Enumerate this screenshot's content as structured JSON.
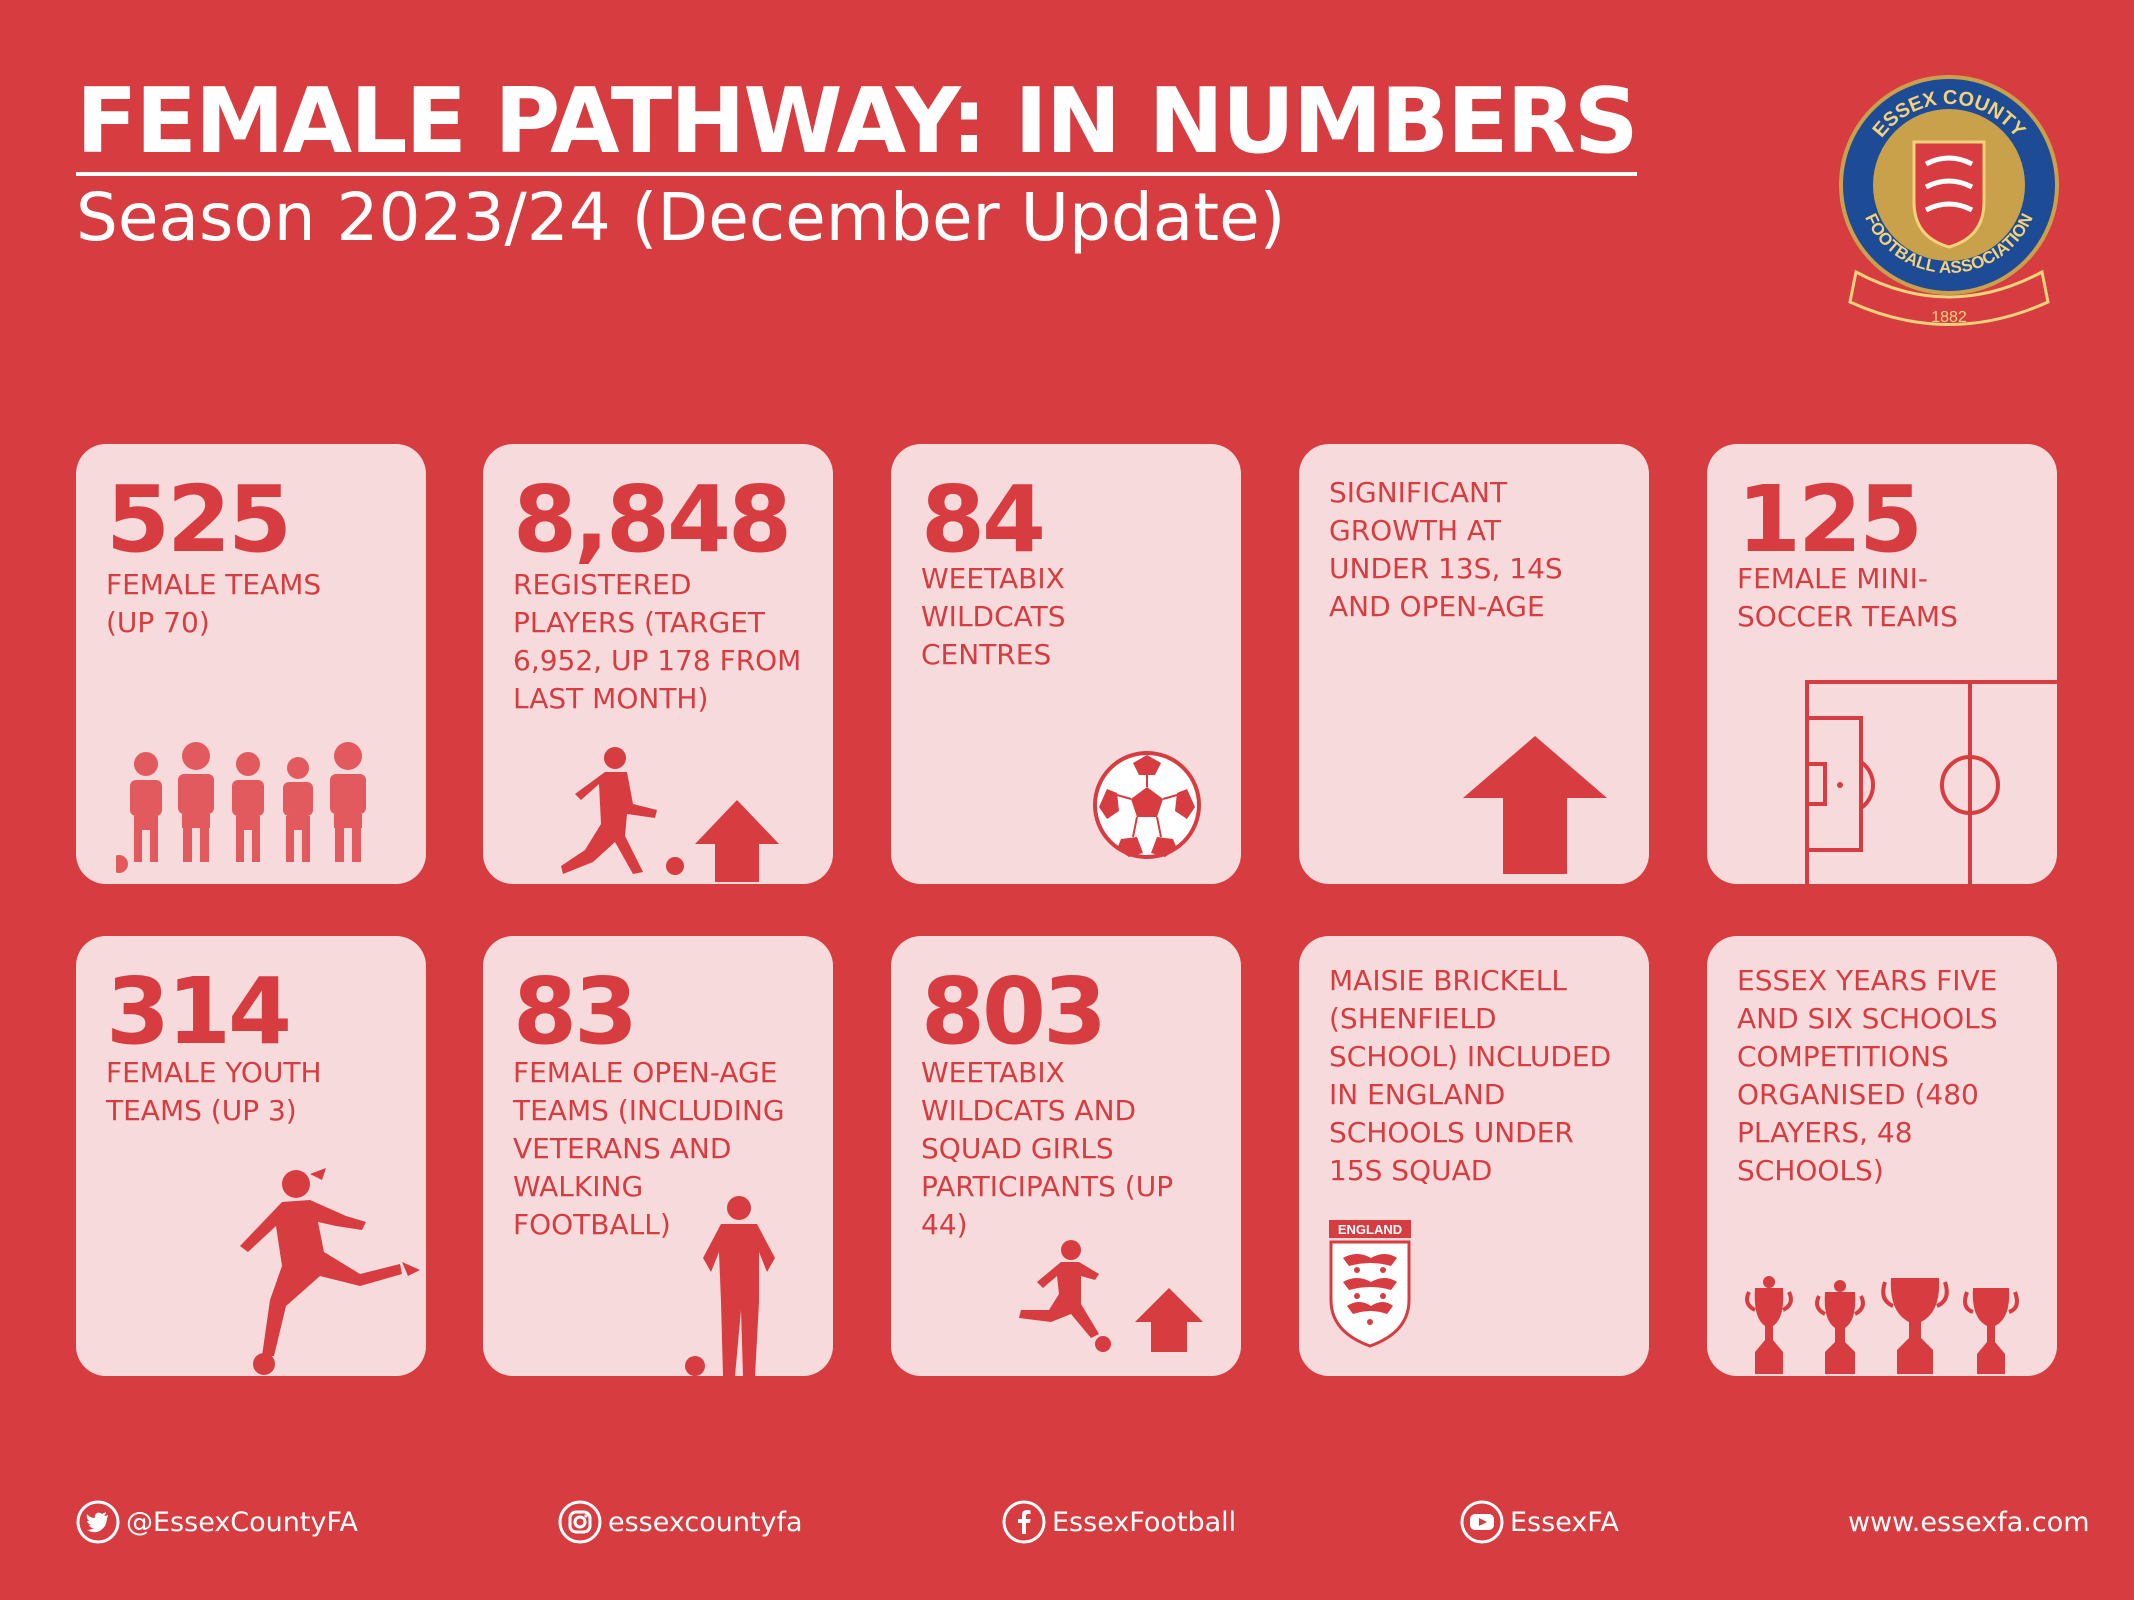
{
  "header": {
    "title": "FEMALE PATHWAY: IN NUMBERS",
    "subtitle": "Season 2023/24 (December Update)"
  },
  "logo": {
    "top_text": "ESSEX COUNTY",
    "bottom_text": "FOOTBALL ASSOCIATION",
    "year": "1882"
  },
  "cards": [
    {
      "number": "525",
      "text": "FEMALE TEAMS (UP 70)"
    },
    {
      "number": "8,848",
      "text": "REGISTERED PLAYERS (TARGET 6,952, UP 178 FROM LAST MONTH)"
    },
    {
      "number": "84",
      "text": "WEETABIX WILDCATS CENTRES"
    },
    {
      "number": "",
      "text": "SIGNIFICANT GROWTH AT UNDER 13S, 14S AND OPEN-AGE"
    },
    {
      "number": "125",
      "text": "FEMALE MINI-SOCCER TEAMS"
    },
    {
      "number": "314",
      "text": "FEMALE YOUTH TEAMS (UP 3)"
    },
    {
      "number": "83",
      "text": "FEMALE OPEN-AGE TEAMS (INCLUDING VETERANS AND WALKING FOOTBALL)"
    },
    {
      "number": "803",
      "text": "WEETABIX WILDCATS AND SQUAD GIRLS PARTICIPANTS (UP 44)"
    },
    {
      "number": "",
      "text": "MAISIE BRICKELL (SHENFIELD SCHOOL) INCLUDED IN ENGLAND SCHOOLS UNDER 15S SQUAD",
      "badge": "ENGLAND"
    },
    {
      "number": "",
      "text": "ESSEX YEARS FIVE AND SIX SCHOOLS COMPETITIONS ORGANISED (480 PLAYERS, 48 SCHOOLS)"
    }
  ],
  "footer": {
    "twitter": "@EssexCountyFA",
    "instagram": "essexcountyfa",
    "facebook": "EssexFootball",
    "youtube": "EssexFA",
    "website": "www.essexfa.com"
  },
  "colors": {
    "background": "#d63c40",
    "card": "#f7dadb",
    "accent": "#d63c40",
    "crest_blue": "#1e4b96",
    "crest_gold": "#c9a14a"
  }
}
